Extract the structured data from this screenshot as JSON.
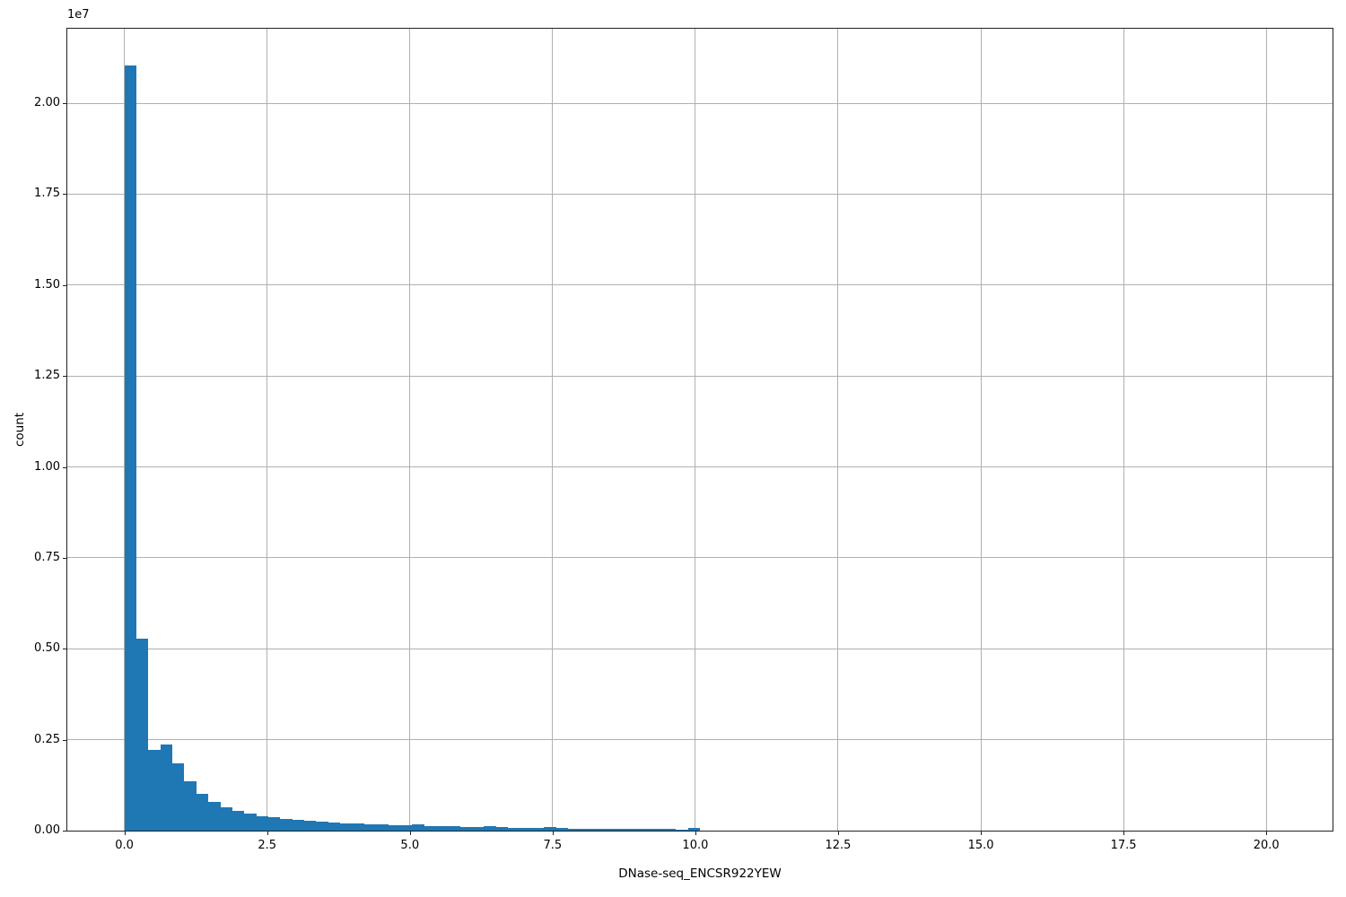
{
  "chart_data": {
    "type": "bar",
    "subtype": "histogram",
    "title": "",
    "xlabel": "DNase-seq_ENCSR922YEW",
    "ylabel": "count",
    "y_offset_label": "1e7",
    "legend": false,
    "grid": true,
    "bin_start": 0,
    "bin_width": 0.21,
    "counts": [
      21050000,
      5280000,
      2220000,
      2360000,
      1840000,
      1350000,
      1020000,
      800000,
      650000,
      550000,
      470000,
      400000,
      360000,
      320000,
      300000,
      265000,
      245000,
      230000,
      205000,
      185000,
      172000,
      165000,
      158000,
      160000,
      180000,
      132000,
      123000,
      115000,
      106000,
      98000,
      115000,
      105000,
      86000,
      80000,
      75000,
      90000,
      66000,
      61000,
      57000,
      55000,
      52000,
      50000,
      47000,
      45000,
      43000,
      41000,
      15000,
      74000,
      8000,
      5000,
      3000,
      2000,
      1500,
      1200,
      1000,
      800,
      700,
      600,
      500,
      400,
      0,
      0,
      0,
      0,
      0,
      0,
      0,
      0,
      0,
      0,
      0,
      0,
      0,
      0,
      0,
      0,
      0,
      0,
      0,
      0,
      0,
      0,
      0,
      0,
      0,
      0,
      0,
      0,
      0,
      0,
      0,
      0,
      0,
      0,
      0,
      0,
      0,
      0,
      0,
      0
    ],
    "xlim": [
      -1.0,
      21.16
    ],
    "ylim": [
      0,
      22050000
    ],
    "x_ticks": {
      "values": [
        0.0,
        2.5,
        5.0,
        7.5,
        10.0,
        12.5,
        15.0,
        17.5,
        20.0
      ],
      "labels": [
        "0.0",
        "2.5",
        "5.0",
        "7.5",
        "10.0",
        "12.5",
        "15.0",
        "17.5",
        "20.0"
      ]
    },
    "y_ticks": {
      "values": [
        0,
        2500000,
        5000000,
        7500000,
        10000000,
        12500000,
        15000000,
        17500000,
        20000000
      ],
      "labels": [
        "0.00",
        "0.25",
        "0.50",
        "0.75",
        "1.00",
        "1.25",
        "1.50",
        "1.75",
        "2.00"
      ]
    },
    "colors": {
      "bar": "#1f77b4",
      "grid": "#b0b0b0",
      "spine": "#222222",
      "text": "#000000",
      "background": "#ffffff"
    }
  }
}
